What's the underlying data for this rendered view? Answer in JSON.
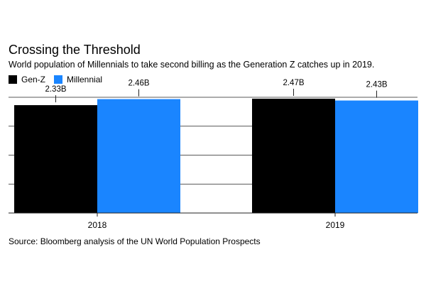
{
  "title": "Crossing the Threshold",
  "subtitle": "World population of Millennials to take second billing as the Generation Z catches up in 2019.",
  "source": "Source: Bloomberg analysis of the UN World Population Prospects",
  "legend": [
    {
      "label": "Gen-Z",
      "color": "#000000"
    },
    {
      "label": "Millennial",
      "color": "#1a85ff"
    }
  ],
  "chart_data": {
    "type": "bar",
    "categories": [
      "2018",
      "2019"
    ],
    "series": [
      {
        "name": "Gen-Z",
        "values": [
          2.33,
          2.47
        ],
        "labels": [
          "2.33B",
          "2.47B"
        ],
        "color": "#000000"
      },
      {
        "name": "Millennial",
        "values": [
          2.46,
          2.43
        ],
        "labels": [
          "2.46B",
          "2.43B"
        ],
        "color": "#1a85ff"
      }
    ],
    "ylim": [
      0,
      2.5
    ],
    "grid": true,
    "legend_position": "top-left"
  }
}
